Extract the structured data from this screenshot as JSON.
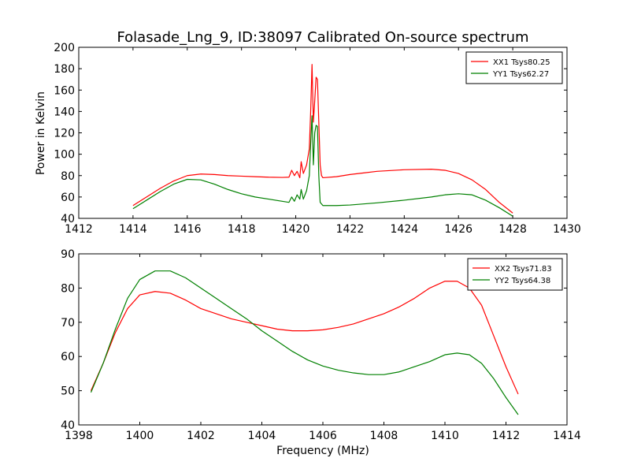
{
  "figure": {
    "title": "Folasade_Lng_9, ID:38097 Calibrated On-source spectrum",
    "xlabel": "Frequency (MHz)",
    "ylabel": "Power in Kelvin"
  },
  "colors": {
    "xx": "#ff0000",
    "yy": "#008000"
  },
  "chart_data": [
    {
      "type": "line",
      "title": "Folasade_Lng_9, ID:38097 Calibrated On-source spectrum",
      "xlabel": "",
      "ylabel": "Power in Kelvin",
      "xlim": [
        1412,
        1430
      ],
      "ylim": [
        40,
        200
      ],
      "xticks": [
        "1412",
        "1414",
        "1416",
        "1418",
        "1420",
        "1422",
        "1424",
        "1426",
        "1428",
        "1430"
      ],
      "yticks": [
        "40",
        "60",
        "80",
        "100",
        "120",
        "140",
        "160",
        "180",
        "200"
      ],
      "legend": "top-right",
      "grid": false,
      "series": [
        {
          "name": "XX1 Tsys80.25",
          "color": "#ff0000",
          "points": [
            [
              1414.0,
              52
            ],
            [
              1414.5,
              60
            ],
            [
              1415.0,
              68
            ],
            [
              1415.5,
              75
            ],
            [
              1416.0,
              80
            ],
            [
              1416.5,
              81.5
            ],
            [
              1417.0,
              81
            ],
            [
              1417.5,
              80
            ],
            [
              1418.0,
              79.5
            ],
            [
              1418.5,
              79
            ],
            [
              1419.0,
              78.5
            ],
            [
              1419.5,
              78.3
            ],
            [
              1419.75,
              78.5
            ],
            [
              1419.85,
              85
            ],
            [
              1419.95,
              80
            ],
            [
              1420.05,
              84
            ],
            [
              1420.15,
              78
            ],
            [
              1420.2,
              93
            ],
            [
              1420.28,
              82
            ],
            [
              1420.4,
              90
            ],
            [
              1420.5,
              105
            ],
            [
              1420.55,
              140
            ],
            [
              1420.6,
              184
            ],
            [
              1420.65,
              130
            ],
            [
              1420.7,
              150
            ],
            [
              1420.75,
              172
            ],
            [
              1420.8,
              170
            ],
            [
              1420.85,
              130
            ],
            [
              1420.9,
              90
            ],
            [
              1420.95,
              80
            ],
            [
              1421.0,
              78
            ],
            [
              1421.5,
              79
            ],
            [
              1422.0,
              81
            ],
            [
              1422.5,
              82.5
            ],
            [
              1423.0,
              84
            ],
            [
              1424.0,
              85.5
            ],
            [
              1425.0,
              86
            ],
            [
              1425.5,
              85
            ],
            [
              1426.0,
              82
            ],
            [
              1426.5,
              76
            ],
            [
              1427.0,
              67
            ],
            [
              1427.5,
              55
            ],
            [
              1428.0,
              45
            ]
          ]
        },
        {
          "name": "YY1 Tsys62.27",
          "color": "#008000",
          "points": [
            [
              1414.0,
              49
            ],
            [
              1414.5,
              57
            ],
            [
              1415.0,
              65
            ],
            [
              1415.5,
              72
            ],
            [
              1416.0,
              76.5
            ],
            [
              1416.5,
              76
            ],
            [
              1417.0,
              72
            ],
            [
              1417.5,
              67
            ],
            [
              1418.0,
              63
            ],
            [
              1418.5,
              60
            ],
            [
              1419.0,
              58
            ],
            [
              1419.5,
              56
            ],
            [
              1419.75,
              55
            ],
            [
              1419.85,
              60
            ],
            [
              1419.95,
              56
            ],
            [
              1420.05,
              62
            ],
            [
              1420.15,
              58
            ],
            [
              1420.2,
              67
            ],
            [
              1420.28,
              58
            ],
            [
              1420.4,
              66
            ],
            [
              1420.5,
              80
            ],
            [
              1420.55,
              110
            ],
            [
              1420.6,
              136
            ],
            [
              1420.65,
              90
            ],
            [
              1420.7,
              120
            ],
            [
              1420.75,
              127
            ],
            [
              1420.8,
              126
            ],
            [
              1420.85,
              80
            ],
            [
              1420.9,
              55
            ],
            [
              1421.0,
              52
            ],
            [
              1421.5,
              52
            ],
            [
              1422.0,
              52.5
            ],
            [
              1422.5,
              53.5
            ],
            [
              1423.0,
              54.5
            ],
            [
              1424.0,
              57
            ],
            [
              1425.0,
              60
            ],
            [
              1425.5,
              62
            ],
            [
              1426.0,
              63
            ],
            [
              1426.5,
              62
            ],
            [
              1427.0,
              57
            ],
            [
              1427.5,
              50
            ],
            [
              1428.0,
              42
            ]
          ]
        }
      ]
    },
    {
      "type": "line",
      "title": "",
      "xlabel": "Frequency (MHz)",
      "ylabel": "",
      "xlim": [
        1398,
        1414
      ],
      "ylim": [
        40,
        90
      ],
      "xticks": [
        "1398",
        "1400",
        "1402",
        "1404",
        "1406",
        "1408",
        "1410",
        "1412",
        "1414"
      ],
      "yticks": [
        "40",
        "50",
        "60",
        "70",
        "80",
        "90"
      ],
      "legend": "top-right",
      "grid": false,
      "series": [
        {
          "name": "XX2 Tsys71.83",
          "color": "#ff0000",
          "points": [
            [
              1398.4,
              50
            ],
            [
              1398.8,
              58
            ],
            [
              1399.2,
              67
            ],
            [
              1399.6,
              74
            ],
            [
              1400.0,
              78
            ],
            [
              1400.5,
              79
            ],
            [
              1401.0,
              78.5
            ],
            [
              1401.5,
              76.5
            ],
            [
              1402.0,
              74
            ],
            [
              1402.5,
              72.5
            ],
            [
              1403.0,
              71
            ],
            [
              1403.5,
              70
            ],
            [
              1404.0,
              69
            ],
            [
              1404.5,
              68
            ],
            [
              1405.0,
              67.5
            ],
            [
              1405.5,
              67.5
            ],
            [
              1406.0,
              67.8
            ],
            [
              1406.5,
              68.5
            ],
            [
              1407.0,
              69.5
            ],
            [
              1407.5,
              71
            ],
            [
              1408.0,
              72.5
            ],
            [
              1408.5,
              74.5
            ],
            [
              1409.0,
              77
            ],
            [
              1409.5,
              80
            ],
            [
              1410.0,
              82
            ],
            [
              1410.4,
              82
            ],
            [
              1410.8,
              80
            ],
            [
              1411.2,
              75
            ],
            [
              1411.6,
              66
            ],
            [
              1412.0,
              57
            ],
            [
              1412.4,
              49
            ]
          ]
        },
        {
          "name": "YY2 Tsys64.38",
          "color": "#008000",
          "points": [
            [
              1398.4,
              49.5
            ],
            [
              1398.8,
              58
            ],
            [
              1399.2,
              68
            ],
            [
              1399.6,
              77
            ],
            [
              1400.0,
              82.5
            ],
            [
              1400.5,
              85
            ],
            [
              1401.0,
              85
            ],
            [
              1401.5,
              83
            ],
            [
              1402.0,
              80
            ],
            [
              1402.5,
              77
            ],
            [
              1403.0,
              74
            ],
            [
              1403.5,
              71
            ],
            [
              1404.0,
              67.5
            ],
            [
              1404.5,
              64.5
            ],
            [
              1405.0,
              61.5
            ],
            [
              1405.5,
              59
            ],
            [
              1406.0,
              57.2
            ],
            [
              1406.5,
              56
            ],
            [
              1407.0,
              55.2
            ],
            [
              1407.5,
              54.7
            ],
            [
              1408.0,
              54.7
            ],
            [
              1408.5,
              55.5
            ],
            [
              1409.0,
              57
            ],
            [
              1409.5,
              58.5
            ],
            [
              1410.0,
              60.5
            ],
            [
              1410.4,
              61
            ],
            [
              1410.8,
              60.5
            ],
            [
              1411.2,
              58
            ],
            [
              1411.6,
              53.5
            ],
            [
              1412.0,
              48
            ],
            [
              1412.4,
              43
            ]
          ]
        }
      ]
    }
  ]
}
